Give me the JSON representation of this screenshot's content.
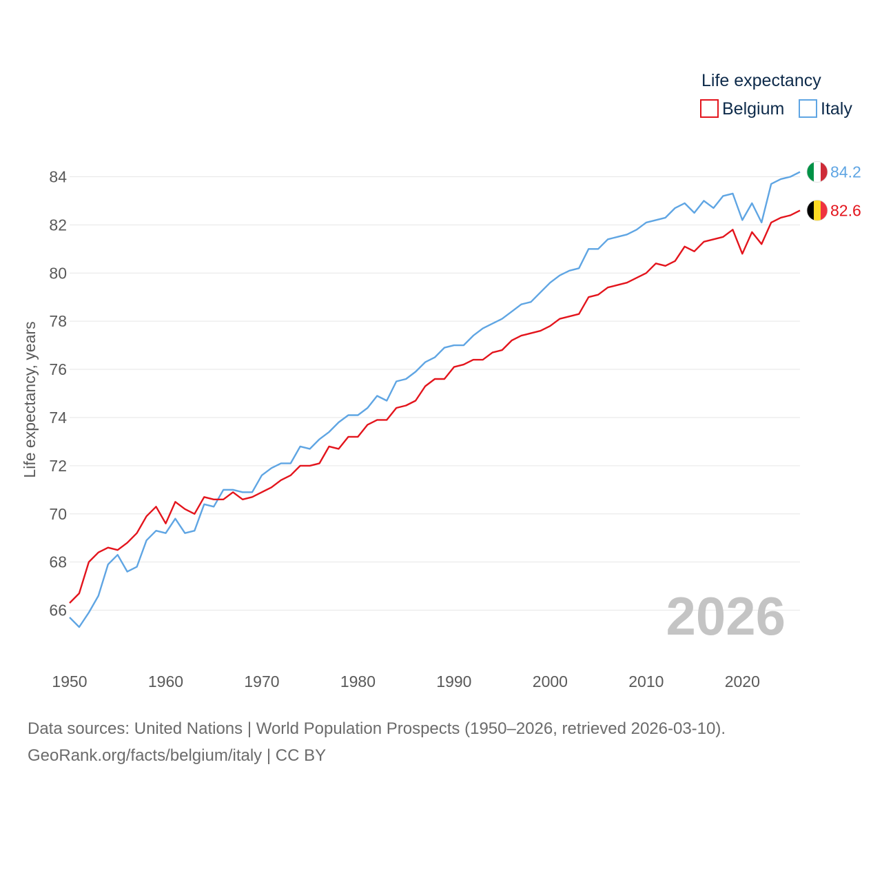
{
  "chart_data": {
    "type": "line",
    "ylabel": "Life expectancy, years",
    "xlabel": "",
    "xlim": [
      1950,
      2026
    ],
    "ylim": [
      65,
      85
    ],
    "x_ticks": [
      "1950",
      "1960",
      "1970",
      "1980",
      "1990",
      "2000",
      "2010",
      "2020"
    ],
    "y_ticks": [
      "66",
      "68",
      "70",
      "72",
      "74",
      "76",
      "78",
      "80",
      "82",
      "84"
    ],
    "legend_title": "Life expectancy",
    "legend_position": "top-right",
    "watermark_year": "2026",
    "series": [
      {
        "name": "Belgium",
        "color": "#e3141c",
        "end_label": "82.6",
        "flag_colors": [
          "#000000",
          "#fdda24",
          "#ef3340"
        ],
        "x_start": 1950,
        "values": [
          66.3,
          66.7,
          68.0,
          68.4,
          68.6,
          68.5,
          68.8,
          69.2,
          69.9,
          70.3,
          69.6,
          70.5,
          70.2,
          70.0,
          70.7,
          70.6,
          70.6,
          70.9,
          70.6,
          70.7,
          70.9,
          71.1,
          71.4,
          71.6,
          72.0,
          72.0,
          72.1,
          72.8,
          72.7,
          73.2,
          73.2,
          73.7,
          73.9,
          73.9,
          74.4,
          74.5,
          74.7,
          75.3,
          75.6,
          75.6,
          76.1,
          76.2,
          76.4,
          76.4,
          76.7,
          76.8,
          77.2,
          77.4,
          77.5,
          77.6,
          77.8,
          78.1,
          78.2,
          78.3,
          79.0,
          79.1,
          79.4,
          79.5,
          79.6,
          79.8,
          80.0,
          80.4,
          80.3,
          80.5,
          81.1,
          80.9,
          81.3,
          81.4,
          81.5,
          81.8,
          80.8,
          81.7,
          81.2,
          82.1,
          82.3,
          82.4,
          82.6
        ]
      },
      {
        "name": "Italy",
        "color": "#5fa5e3",
        "end_label": "84.2",
        "flag_colors": [
          "#009246",
          "#ffffff",
          "#ce2b37"
        ],
        "x_start": 1950,
        "values": [
          65.7,
          65.3,
          65.9,
          66.6,
          67.9,
          68.3,
          67.6,
          67.8,
          68.9,
          69.3,
          69.2,
          69.8,
          69.2,
          69.3,
          70.4,
          70.3,
          71.0,
          71.0,
          70.9,
          70.9,
          71.6,
          71.9,
          72.1,
          72.1,
          72.8,
          72.7,
          73.1,
          73.4,
          73.8,
          74.1,
          74.1,
          74.4,
          74.9,
          74.7,
          75.5,
          75.6,
          75.9,
          76.3,
          76.5,
          76.9,
          77.0,
          77.0,
          77.4,
          77.7,
          77.9,
          78.1,
          78.4,
          78.7,
          78.8,
          79.2,
          79.6,
          79.9,
          80.1,
          80.2,
          81.0,
          81.0,
          81.4,
          81.5,
          81.6,
          81.8,
          82.1,
          82.2,
          82.3,
          82.7,
          82.9,
          82.5,
          83.0,
          82.7,
          83.2,
          83.3,
          82.2,
          82.9,
          82.1,
          83.7,
          83.9,
          84.0,
          84.2
        ]
      }
    ]
  },
  "footer": {
    "source": "Data sources: United Nations | World Population Prospects (1950–2026, retrieved 2026-03-10).",
    "credit": "GeoRank.org/facts/belgium/italy | CC BY"
  }
}
